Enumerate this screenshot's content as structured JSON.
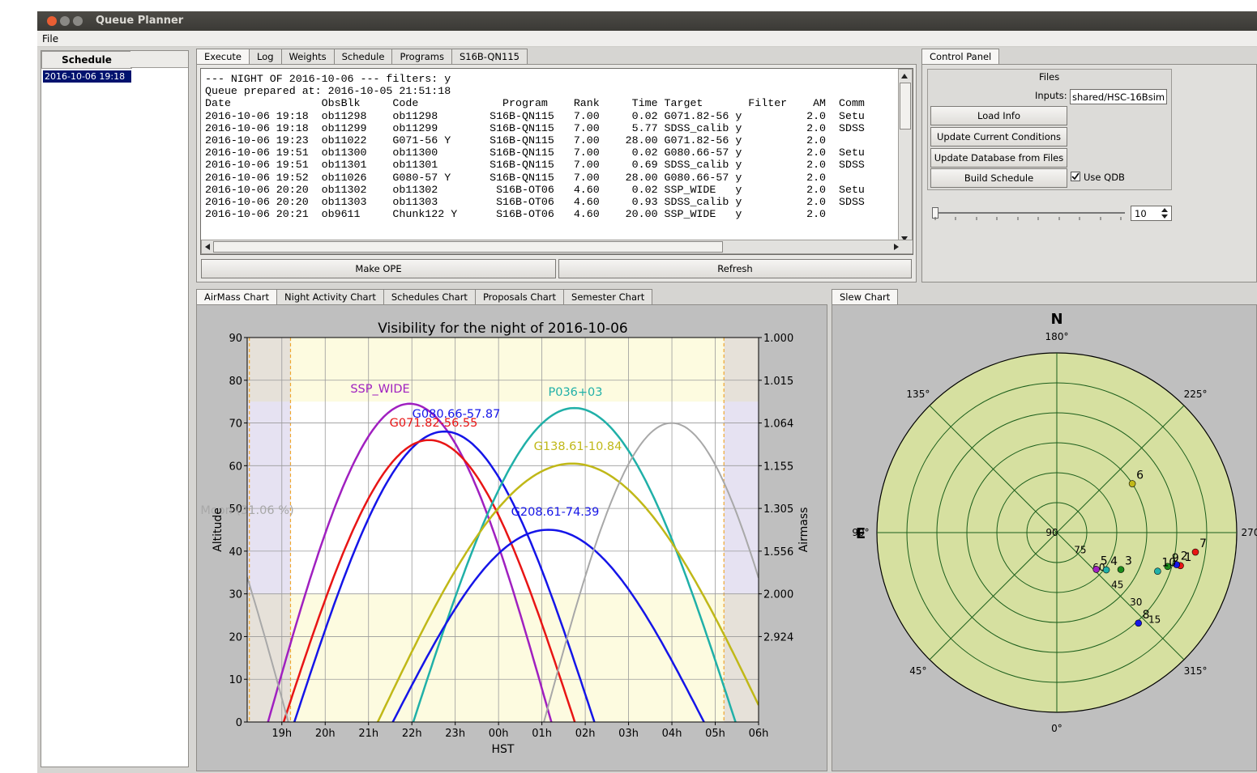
{
  "window": {
    "title": "Queue Planner"
  },
  "menu": {
    "file": "File"
  },
  "schedule_panel": {
    "header": "Schedule",
    "selected": "2016-10-06 19:18"
  },
  "top_tabs": [
    "Execute",
    "Log",
    "Weights",
    "Schedule",
    "Programs",
    "S16B-QN115"
  ],
  "execute": {
    "lines": [
      "--- NIGHT OF 2016-10-06 --- filters: y",
      "Queue prepared at: 2016-10-05 21:51:18",
      "Date              ObsBlk     Code             Program    Rank     Time Target       Filter    AM  Comm",
      "2016-10-06 19:18  ob11298    ob11298        S16B-QN115   7.00     0.02 G071.82-56 y          2.0  Setu",
      "2016-10-06 19:18  ob11299    ob11299        S16B-QN115   7.00     5.77 SDSS_calib y          2.0  SDSS",
      "2016-10-06 19:23  ob11022    G071-56 Y      S16B-QN115   7.00    28.00 G071.82-56 y          2.0",
      "2016-10-06 19:51  ob11300    ob11300        S16B-QN115   7.00     0.02 G080.66-57 y          2.0  Setu",
      "2016-10-06 19:51  ob11301    ob11301        S16B-QN115   7.00     0.69 SDSS_calib y          2.0  SDSS",
      "2016-10-06 19:52  ob11026    G080-57 Y      S16B-QN115   7.00    28.00 G080.66-57 y          2.0",
      "2016-10-06 20:20  ob11302    ob11302         S16B-OT06   4.60     0.02 SSP_WIDE   y          2.0  Setu",
      "2016-10-06 20:20  ob11303    ob11303         S16B-OT06   4.60     0.93 SDSS_calib y          2.0  SDSS",
      "2016-10-06 20:21  ob9611     Chunk122 Y      S16B-OT06   4.60    20.00 SSP_WIDE   y          2.0"
    ],
    "make_ope": "Make OPE",
    "refresh": "Refresh"
  },
  "control_panel": {
    "tab": "Control Panel",
    "files_label": "Files",
    "inputs_label": "Inputs:",
    "inputs_value": "shared/HSC-16Bsim",
    "load_info": "Load Info",
    "update_conditions": "Update Current Conditions",
    "update_database": "Update Database from Files",
    "build_schedule": "Build Schedule",
    "use_qdb": "Use QDB",
    "use_qdb_checked": true,
    "slider_value": "10"
  },
  "chart_tabs": [
    "AirMass Chart",
    "Night Activity Chart",
    "Schedules Chart",
    "Proposals Chart",
    "Semester Chart"
  ],
  "slew_tab": "Slew Chart",
  "chart_data": [
    {
      "type": "line",
      "title": "Visibility for the night of 2016-10-06",
      "xlabel": "HST",
      "ylabel": "Altitude",
      "ylabel_right": "Airmass",
      "xticks": [
        "19h",
        "20h",
        "21h",
        "22h",
        "23h",
        "00h",
        "01h",
        "02h",
        "03h",
        "04h",
        "05h",
        "06h"
      ],
      "x_range_hours": [
        18.2,
        30.0
      ],
      "ylim": [
        0,
        90
      ],
      "yticks": [
        0,
        10,
        20,
        30,
        40,
        50,
        60,
        70,
        80,
        90
      ],
      "right_ticks": [
        {
          "alt": 90,
          "label": "1.000"
        },
        {
          "alt": 80,
          "label": "1.015"
        },
        {
          "alt": 70,
          "label": "1.064"
        },
        {
          "alt": 60,
          "label": "1.155"
        },
        {
          "alt": 50,
          "label": "1.305"
        },
        {
          "alt": 40,
          "label": "1.556"
        },
        {
          "alt": 30,
          "label": "2.000"
        },
        {
          "alt": 20,
          "label": "2.924"
        }
      ],
      "series": [
        {
          "name": "SSP_WIDE",
          "color": "#a020c0",
          "peak_time": 21.95,
          "peak_alt": 74.5,
          "width": 2.55
        },
        {
          "name": "G080.66-57.87",
          "color": "#1515e8",
          "peak_time": 22.75,
          "peak_alt": 68.0,
          "width": 2.7
        },
        {
          "name": "G071.82-56.55",
          "color": "#e81515",
          "peak_time": 22.4,
          "peak_alt": 66.0,
          "width": 2.62
        },
        {
          "name": "P036+03",
          "color": "#20b0a8",
          "peak_time": 25.75,
          "peak_alt": 73.5,
          "width": 2.9
        },
        {
          "name": "G138.61-10.84",
          "color": "#c0b818",
          "peak_time": 25.7,
          "peak_alt": 60.5,
          "width": 3.5
        },
        {
          "name": "G208.61-74.39",
          "color": "#1515e8",
          "peak_time": 25.15,
          "peak_alt": 45.0,
          "width": 2.8
        },
        {
          "name": "Moon (31.06 %)",
          "color": "#a8a8a8",
          "peak_time": 16.2,
          "peak_alt": 70.0,
          "width": 2.3
        }
      ]
    },
    {
      "type": "scatter",
      "projection": "polar",
      "north_label": "N",
      "east_label": "E",
      "azimuth_labels": [
        {
          "az": 180,
          "label": "180°"
        },
        {
          "az": 135,
          "label": "135°"
        },
        {
          "az": 90,
          "label": "90°"
        },
        {
          "az": 45,
          "label": "45°"
        },
        {
          "az": 0,
          "label": "0°"
        },
        {
          "az": 315,
          "label": "315°"
        },
        {
          "az": 270,
          "label": "270°"
        },
        {
          "az": 225,
          "label": "225°"
        }
      ],
      "elevation_rings": [
        15,
        30,
        45,
        60,
        75
      ],
      "elevation_labels": [
        "90",
        "75",
        "60",
        "45",
        "30",
        "15"
      ],
      "points": [
        {
          "label": "6",
          "az": 237,
          "el": 45,
          "color": "#c0b818"
        },
        {
          "label": "7",
          "az": 278,
          "el": 20,
          "color": "#e81515"
        },
        {
          "label": "1",
          "az": 285,
          "el": 26,
          "color": "#e81515"
        },
        {
          "label": "2",
          "az": 285,
          "el": 28,
          "color": "#1515e8"
        },
        {
          "label": "9",
          "az": 287,
          "el": 32,
          "color": "#1a8a1a"
        },
        {
          "label": "10",
          "az": 291,
          "el": 36,
          "color": "#20b0a8"
        },
        {
          "label": "3",
          "az": 300,
          "el": 53,
          "color": "#1a8a1a"
        },
        {
          "label": "4",
          "az": 307,
          "el": 59,
          "color": "#20b0a8"
        },
        {
          "label": "5",
          "az": 313,
          "el": 63,
          "color": "#a020c0"
        },
        {
          "label": "8",
          "az": 318,
          "el": 29,
          "color": "#1515e8"
        }
      ]
    }
  ]
}
